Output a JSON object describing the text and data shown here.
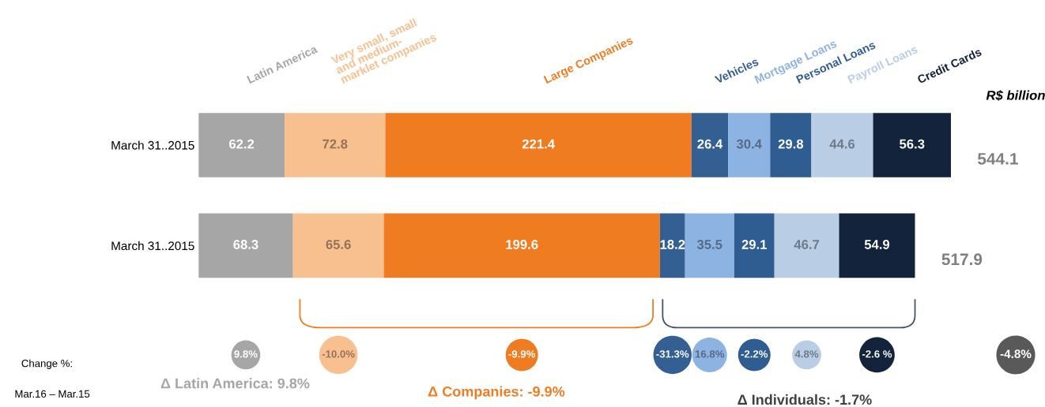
{
  "chart_data": {
    "type": "bar",
    "orientation": "horizontal",
    "stacked": true,
    "data_labels": true,
    "legend": false,
    "grid": false,
    "categories": [
      "March 31..2015",
      "March 31..2015"
    ],
    "series": [
      {
        "name": "Latin America",
        "color": "#a6a6a6",
        "values": [
          62.2,
          68.3
        ]
      },
      {
        "name": "Very small, small\nand medium-\nmarklet companies",
        "color": "#f9c08f",
        "values": [
          72.8,
          65.6
        ]
      },
      {
        "name": "Large Companies",
        "color": "#f07c22",
        "values": [
          221.4,
          199.6
        ]
      },
      {
        "name": "Vehicles",
        "color": "#335f93",
        "values": [
          26.4,
          18.2
        ]
      },
      {
        "name": "Mortgage Loans",
        "color": "#8db3e2",
        "values": [
          30.4,
          35.5
        ]
      },
      {
        "name": "Personal Loans",
        "color": "#2f5d92",
        "values": [
          29.8,
          29.1
        ]
      },
      {
        "name": "Payroll Loans",
        "color": "#b9cde5",
        "values": [
          44.6,
          46.7
        ]
      },
      {
        "name": "Credit Cards",
        "color": "#14233c",
        "values": [
          56.3,
          54.9
        ]
      }
    ],
    "totals": [
      "544.1",
      "517.9"
    ],
    "annotations": [
      "R$ billion",
      "Change %:",
      "Mar.16 – Mar.15",
      "9.8%",
      "-10.0%",
      "-9.9%",
      "-31.3%",
      "16.8%",
      "-2.2%",
      "4.8%",
      "-2.6 %",
      "-4.8%",
      "Δ Latin America: 9.8%",
      "Δ Companies: -9.9%",
      "Δ Individuals: -1.7%"
    ]
  }
}
